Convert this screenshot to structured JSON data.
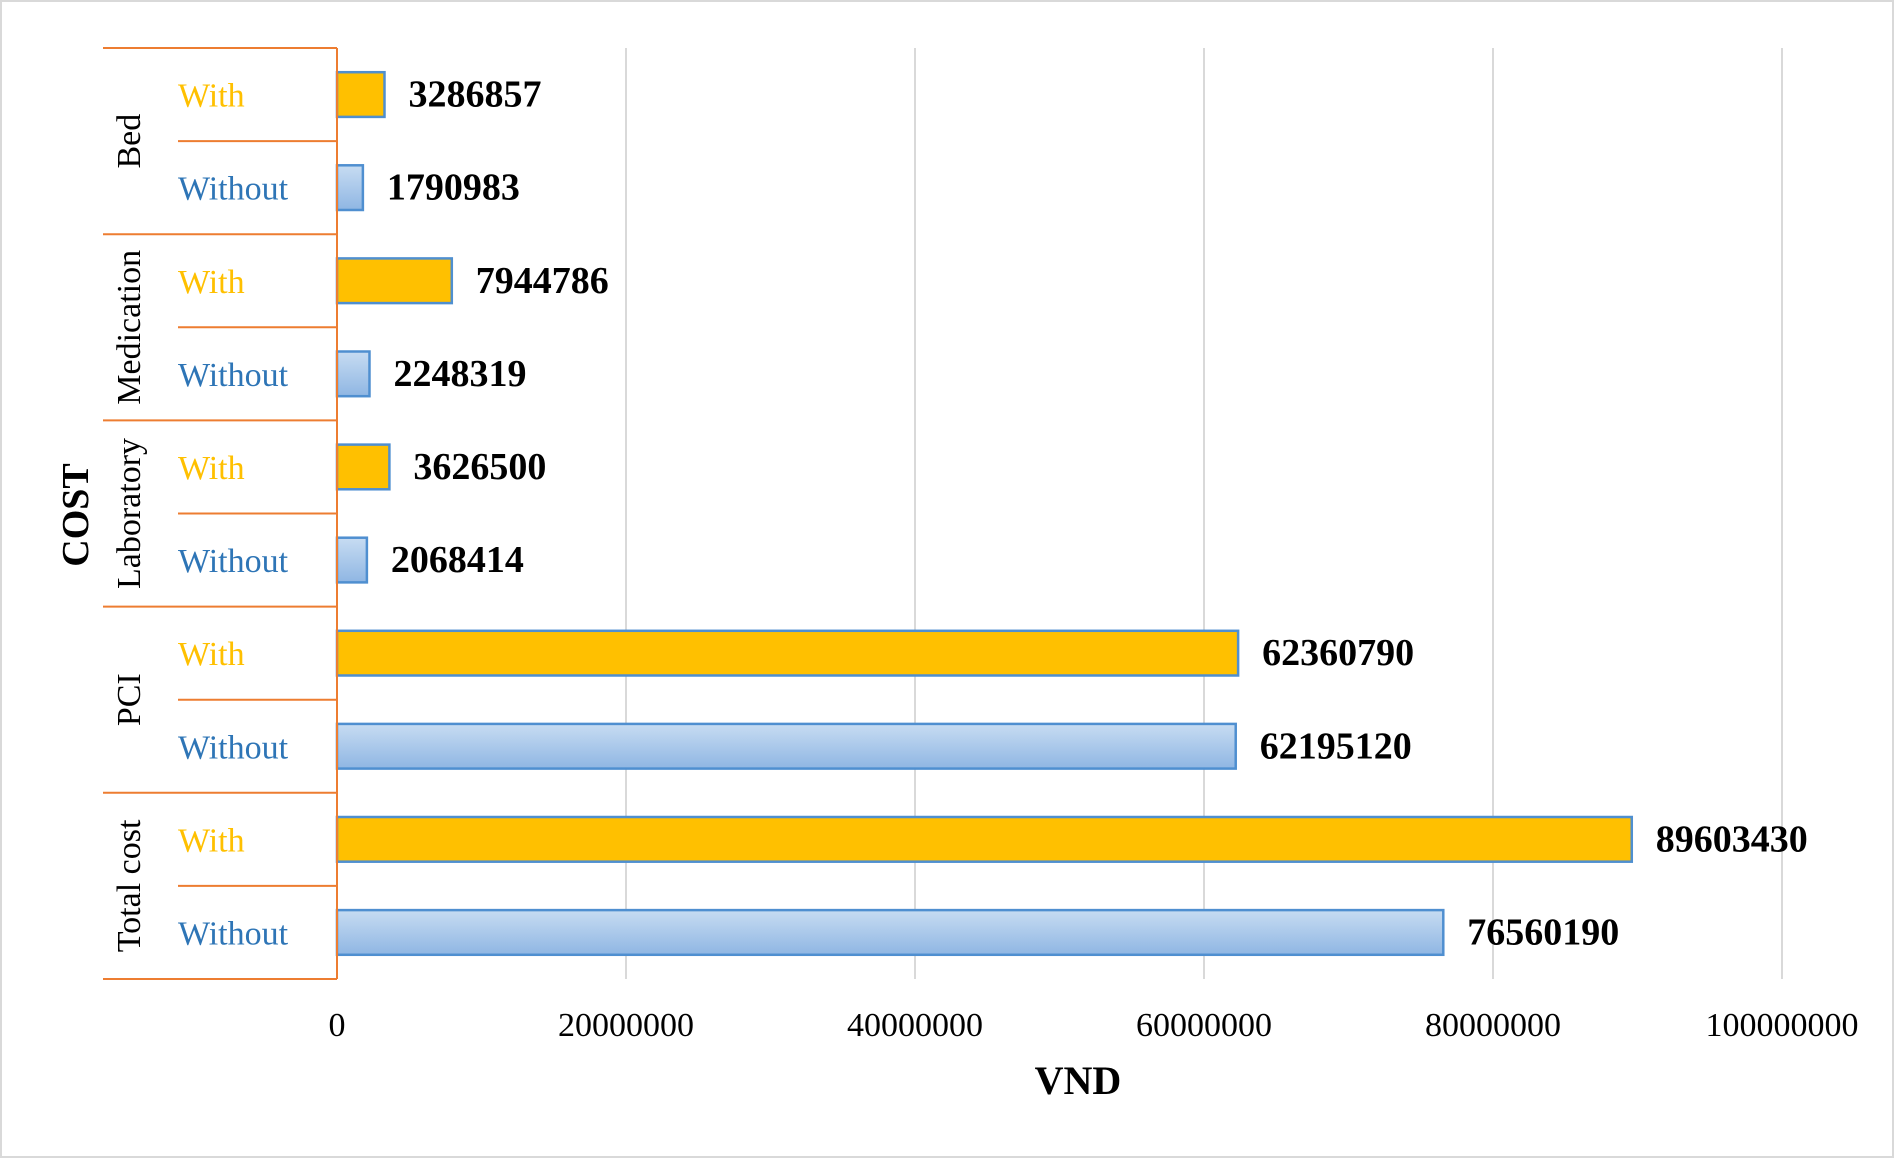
{
  "chart_data": {
    "type": "bar",
    "orientation": "horizontal",
    "xlabel": "VND",
    "ylabel": "COST",
    "xlim": [
      0,
      100000000
    ],
    "x_ticks": [
      "0",
      "20000000",
      "40000000",
      "60000000",
      "80000000",
      "100000000"
    ],
    "grid": "vertical",
    "groups": [
      {
        "label": "Bed",
        "bars": [
          {
            "label": "With",
            "value": 3286857,
            "value_label": "3286857",
            "series": "with"
          },
          {
            "label": "Without",
            "value": 1790983,
            "value_label": "1790983",
            "series": "without"
          }
        ]
      },
      {
        "label": "Medication",
        "bars": [
          {
            "label": "With",
            "value": 7944786,
            "value_label": "7944786",
            "series": "with"
          },
          {
            "label": "Without",
            "value": 2248319,
            "value_label": "2248319",
            "series": "without"
          }
        ]
      },
      {
        "label": "Laboratory",
        "bars": [
          {
            "label": "With",
            "value": 3626500,
            "value_label": "3626500",
            "series": "with"
          },
          {
            "label": "Without",
            "value": 2068414,
            "value_label": "2068414",
            "series": "without"
          }
        ]
      },
      {
        "label": "PCI",
        "bars": [
          {
            "label": "With",
            "value": 62360790,
            "value_label": "62360790",
            "series": "with"
          },
          {
            "label": "Without",
            "value": 62195120,
            "value_label": "62195120",
            "series": "without"
          }
        ]
      },
      {
        "label": "Total cost",
        "bars": [
          {
            "label": "With",
            "value": 89603430,
            "value_label": "89603430",
            "series": "with"
          },
          {
            "label": "Without",
            "value": 76560190,
            "value_label": "76560190",
            "series": "without"
          }
        ]
      }
    ]
  },
  "colors": {
    "with_fill": "#ffc000",
    "with_stroke": "#4f8fd0",
    "with_label": "#ffc000",
    "without_fill_top": "#c7dcf2",
    "without_fill_bottom": "#8fb6e3",
    "without_stroke": "#4f8fd0",
    "without_label": "#2e75b6",
    "category_border": "#ed7d31",
    "grid": "#d9d9d9",
    "text": "#000000"
  }
}
